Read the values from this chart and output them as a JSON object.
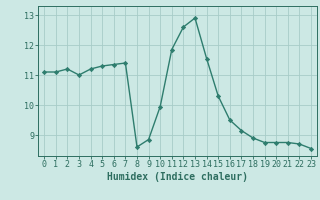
{
  "x": [
    0,
    1,
    2,
    3,
    4,
    5,
    6,
    7,
    8,
    9,
    10,
    11,
    12,
    13,
    14,
    15,
    16,
    17,
    18,
    19,
    20,
    21,
    22,
    23
  ],
  "y": [
    11.1,
    11.1,
    11.2,
    11.0,
    11.2,
    11.3,
    11.35,
    11.4,
    8.6,
    8.85,
    9.95,
    11.85,
    12.6,
    12.9,
    11.55,
    10.3,
    9.5,
    9.15,
    8.9,
    8.75,
    8.75,
    8.75,
    8.7,
    8.55
  ],
  "line_color": "#2e7d6e",
  "marker": "D",
  "markersize": 2.2,
  "linewidth": 1.0,
  "xlabel": "Humidex (Indice chaleur)",
  "xlim": [
    -0.5,
    23.5
  ],
  "ylim": [
    8.3,
    13.3
  ],
  "yticks": [
    9,
    10,
    11,
    12,
    13
  ],
  "xticks": [
    0,
    1,
    2,
    3,
    4,
    5,
    6,
    7,
    8,
    9,
    10,
    11,
    12,
    13,
    14,
    15,
    16,
    17,
    18,
    19,
    20,
    21,
    22,
    23
  ],
  "bg_color": "#cce8e4",
  "grid_color": "#a8ccc8",
  "tick_color": "#2e6e60",
  "xlabel_fontsize": 7.0,
  "tick_fontsize": 6.0,
  "xlabel_fontweight": "bold"
}
